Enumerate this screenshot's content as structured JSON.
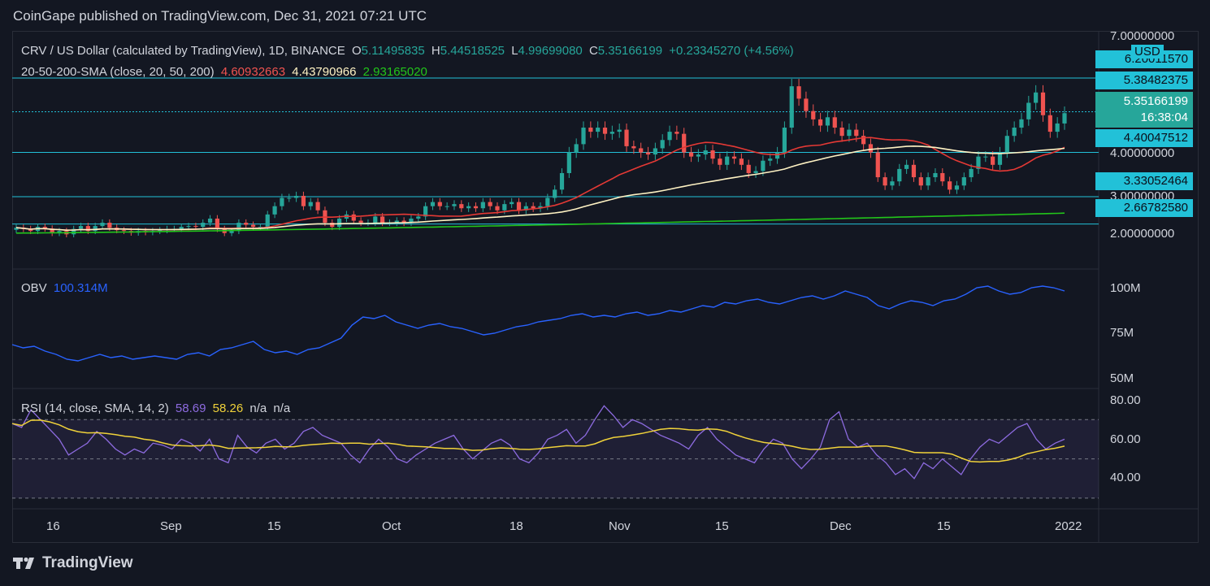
{
  "header": {
    "published": "CoinGape published on TradingView.com, Dec 31, 2021 07:21 UTC"
  },
  "legend": {
    "symbol": "CRV / US Dollar (calculated by TradingView), 1D, BINANCE",
    "o_label": "O",
    "o_value": "5.11495835",
    "h_label": "H",
    "h_value": "5.44518525",
    "l_label": "L",
    "l_value": "4.99699080",
    "c_label": "C",
    "c_value": "5.35166199",
    "change": "+0.23345270 (+4.56%)",
    "sma_label": "20-50-200-SMA (close, 20, 50, 200)",
    "sma20": "4.60932663",
    "sma50": "4.43790966",
    "sma200": "2.93165020",
    "obv_label": "OBV",
    "obv_value": "100.314M",
    "rsi_label": "RSI (14, close, SMA, 14, 2)",
    "rsi_value": "58.69",
    "rsi_sma": "58.26",
    "rsi_na1": "n/a",
    "rsi_na2": "n/a"
  },
  "price_axis": {
    "currency": "USD",
    "ticks": [
      "7.00000000",
      "4.00000000",
      "2.00000000"
    ],
    "partial_tick": "3.00000000",
    "levels": [
      "6.20011570",
      "5.38482375",
      "4.40047512",
      "3.33052464",
      "2.66782580"
    ],
    "current_price": "5.35166199",
    "countdown": "16:38:04"
  },
  "obv_axis": {
    "ticks": [
      "100M",
      "75M",
      "50M"
    ]
  },
  "rsi_axis": {
    "ticks": [
      "80.00",
      "60.00",
      "40.00"
    ]
  },
  "time_axis": {
    "ticks": [
      "16",
      "Sep",
      "15",
      "Oct",
      "18",
      "Nov",
      "15",
      "Dec",
      "15",
      "2022"
    ]
  },
  "colors": {
    "background": "#131722",
    "up": "#26a69a",
    "down": "#ef5350",
    "sma20": "#e53935",
    "sma50": "#fff3c4",
    "sma200": "#22c51a",
    "levels": "#22c1d8",
    "obv": "#2962ff",
    "rsi": "#8d6be0",
    "rsi_sma": "#f0d23a"
  },
  "footer": {
    "brand": "TradingView"
  },
  "chart_data": [
    {
      "type": "candlestick",
      "name": "CRV / US Dollar",
      "x_start": "2021-08-12",
      "x_end": "2021-12-31",
      "ylim": [
        1.6,
        7.3
      ],
      "ohlc_close": [
        2.58,
        2.55,
        2.5,
        2.6,
        2.56,
        2.45,
        2.5,
        2.42,
        2.55,
        2.62,
        2.5,
        2.62,
        2.7,
        2.58,
        2.52,
        2.5,
        2.46,
        2.5,
        2.47,
        2.5,
        2.52,
        2.55,
        2.55,
        2.6,
        2.62,
        2.6,
        2.7,
        2.8,
        2.55,
        2.45,
        2.5,
        2.7,
        2.65,
        2.6,
        2.6,
        2.9,
        3.1,
        3.3,
        3.3,
        3.35,
        3.1,
        3.2,
        3.0,
        2.7,
        2.6,
        2.8,
        2.9,
        2.75,
        2.7,
        2.7,
        2.85,
        2.7,
        2.7,
        2.75,
        2.7,
        2.8,
        2.85,
        3.1,
        3.2,
        3.1,
        3.1,
        3.15,
        3.05,
        3.1,
        3.05,
        3.2,
        3.1,
        3.0,
        3.15,
        3.2,
        3.0,
        3.1,
        3.05,
        3.1,
        3.3,
        3.5,
        3.9,
        4.4,
        4.6,
        5.0,
        4.9,
        5.0,
        4.85,
        4.9,
        4.95,
        4.55,
        4.5,
        4.4,
        4.35,
        4.5,
        4.7,
        4.9,
        4.85,
        4.4,
        4.3,
        4.35,
        4.45,
        4.25,
        4.1,
        4.3,
        4.25,
        4.1,
        3.9,
        3.95,
        4.2,
        4.25,
        4.4,
        5.0,
        6.0,
        5.7,
        5.4,
        5.2,
        5.05,
        5.25,
        5.0,
        4.8,
        4.95,
        4.8,
        4.6,
        4.4,
        3.8,
        3.6,
        3.7,
        4.0,
        4.1,
        3.8,
        3.6,
        3.8,
        3.9,
        3.7,
        3.5,
        3.6,
        3.8,
        4.0,
        4.3,
        4.3,
        4.1,
        4.4,
        4.8,
        5.0,
        5.2,
        5.6,
        5.85,
        5.3,
        4.9,
        5.1,
        5.35
      ],
      "sma20_end": 4.60932663,
      "sma50_end": 4.43790966,
      "sma200_end": 2.9316502,
      "horizontal_levels": [
        6.2001157,
        5.38482375,
        4.40047512,
        3.33052464,
        2.6678258
      ]
    },
    {
      "type": "line",
      "name": "OBV",
      "ylim": [
        45,
        110
      ],
      "values": [
        68,
        66,
        67,
        64,
        62,
        59,
        58,
        60,
        62,
        60,
        61,
        59,
        60,
        61,
        60,
        59,
        62,
        63,
        61,
        65,
        66,
        68,
        70,
        65,
        63,
        64,
        62,
        65,
        66,
        69,
        72,
        80,
        85,
        84,
        86,
        82,
        80,
        78,
        80,
        81,
        79,
        78,
        76,
        74,
        75,
        77,
        79,
        80,
        82,
        83,
        84,
        86,
        87,
        85,
        86,
        85,
        87,
        88,
        86,
        87,
        89,
        88,
        90,
        92,
        91,
        94,
        93,
        95,
        96,
        94,
        93,
        95,
        97,
        98,
        96,
        98,
        101,
        99,
        97,
        92,
        90,
        93,
        95,
        94,
        92,
        95,
        96,
        99,
        103,
        104,
        101,
        99,
        100,
        103,
        104,
        103,
        101
      ]
    },
    {
      "type": "line",
      "name": "RSI",
      "ylim": [
        25,
        85
      ],
      "values": [
        68,
        66,
        75,
        70,
        65,
        60,
        52,
        55,
        58,
        64,
        60,
        55,
        52,
        55,
        53,
        58,
        57,
        55,
        60,
        58,
        54,
        60,
        50,
        48,
        62,
        56,
        53,
        58,
        60,
        55,
        58,
        64,
        66,
        62,
        60,
        58,
        52,
        48,
        55,
        60,
        56,
        50,
        48,
        52,
        55,
        58,
        60,
        62,
        55,
        50,
        54,
        58,
        60,
        57,
        50,
        48,
        53,
        60,
        62,
        65,
        58,
        62,
        70,
        77,
        72,
        66,
        70,
        68,
        65,
        62,
        60,
        58,
        55,
        62,
        66,
        60,
        56,
        52,
        50,
        48,
        55,
        60,
        58,
        50,
        45,
        50,
        56,
        70,
        74,
        60,
        56,
        58,
        52,
        48,
        42,
        45,
        40,
        48,
        45,
        50,
        46,
        42,
        50,
        56,
        60,
        58,
        62,
        66,
        68,
        60,
        55,
        58,
        60
      ]
    }
  ]
}
